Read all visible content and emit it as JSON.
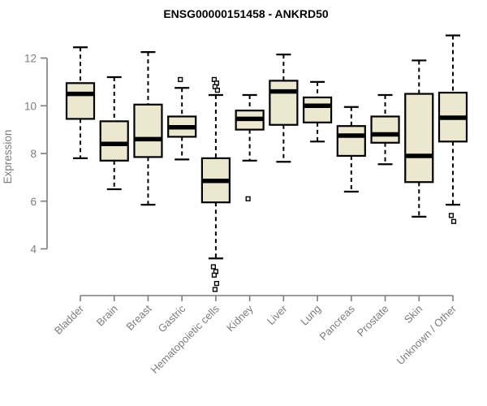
{
  "chart_data": {
    "type": "boxplot",
    "title": "ENSG00000151458 - ANKRD50",
    "xlabel": "",
    "ylabel": "Expression",
    "ylim": [
      4,
      12
    ],
    "yticks": [
      4,
      6,
      8,
      10,
      12
    ],
    "grid": false,
    "legend_position": "none",
    "categories": [
      "Bladder",
      "Brain",
      "Breast",
      "Gastric",
      "Hematopoietic cells",
      "Kidney",
      "Liver",
      "Lung",
      "Pancreas",
      "Prostate",
      "Skin",
      "Unknown / Other"
    ],
    "series": [
      {
        "name": "Bladder",
        "whisker_low": 7.8,
        "q1": 9.45,
        "median": 10.5,
        "q3": 10.95,
        "whisker_high": 12.45,
        "outliers": []
      },
      {
        "name": "Brain",
        "whisker_low": 6.5,
        "q1": 7.7,
        "median": 8.4,
        "q3": 9.35,
        "whisker_high": 11.2,
        "outliers": []
      },
      {
        "name": "Breast",
        "whisker_low": 5.85,
        "q1": 7.85,
        "median": 8.6,
        "q3": 10.05,
        "whisker_high": 12.25,
        "outliers": []
      },
      {
        "name": "Gastric",
        "whisker_low": 7.75,
        "q1": 8.7,
        "median": 9.1,
        "q3": 9.55,
        "whisker_high": 10.75,
        "outliers": [
          11.1
        ]
      },
      {
        "name": "Hematopoietic cells",
        "whisker_low": 3.6,
        "q1": 5.95,
        "median": 6.85,
        "q3": 7.8,
        "whisker_high": 10.45,
        "outliers": [
          11.1,
          10.95,
          10.8,
          10.65,
          3.25,
          3.05,
          2.9,
          2.55,
          2.3
        ]
      },
      {
        "name": "Kidney",
        "whisker_low": 7.7,
        "q1": 9.0,
        "median": 9.45,
        "q3": 9.8,
        "whisker_high": 10.45,
        "outliers": [
          6.1
        ]
      },
      {
        "name": "Liver",
        "whisker_low": 7.65,
        "q1": 9.2,
        "median": 10.6,
        "q3": 11.05,
        "whisker_high": 12.15,
        "outliers": []
      },
      {
        "name": "Lung",
        "whisker_low": 8.5,
        "q1": 9.3,
        "median": 10.0,
        "q3": 10.35,
        "whisker_high": 11.0,
        "outliers": []
      },
      {
        "name": "Pancreas",
        "whisker_low": 6.4,
        "q1": 7.9,
        "median": 8.75,
        "q3": 9.15,
        "whisker_high": 9.95,
        "outliers": []
      },
      {
        "name": "Prostate",
        "whisker_low": 7.55,
        "q1": 8.45,
        "median": 8.8,
        "q3": 9.55,
        "whisker_high": 10.45,
        "outliers": []
      },
      {
        "name": "Skin",
        "whisker_low": 5.35,
        "q1": 6.8,
        "median": 7.9,
        "q3": 10.5,
        "whisker_high": 11.9,
        "outliers": []
      },
      {
        "name": "Unknown / Other",
        "whisker_low": 5.85,
        "q1": 8.5,
        "median": 9.5,
        "q3": 10.55,
        "whisker_high": 12.95,
        "outliers": [
          5.4,
          5.15
        ]
      }
    ],
    "colors": {
      "box_fill": "#ECE7CF",
      "box_border": "#000000",
      "median": "#000000",
      "whisker": "#000000",
      "outlier_stroke": "#000000",
      "outlier_fill": "#ffffff",
      "axis": "#7d7d7d",
      "tick_label": "#7d7d7d",
      "title": "#000000",
      "background": "#ffffff"
    }
  }
}
